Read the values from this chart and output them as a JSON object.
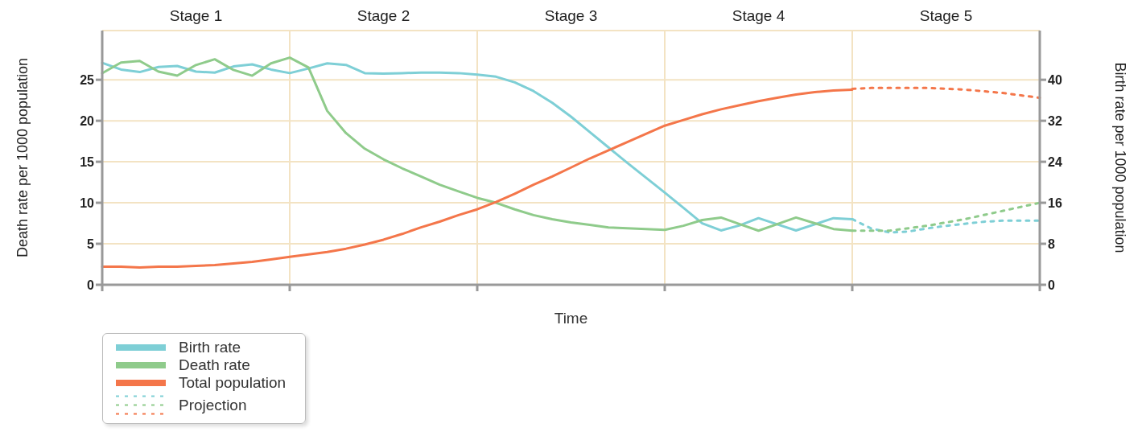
{
  "chart_data": {
    "type": "line",
    "xlabel": "Time",
    "ylabel": "Death rate per 1000 population",
    "y2label": "Birth rate per 1000 population",
    "categories": [
      null,
      null,
      null,
      null,
      null,
      null,
      null,
      null,
      null,
      null,
      null,
      null,
      null,
      null,
      null,
      null,
      null,
      null,
      null,
      null,
      null,
      null,
      null,
      null,
      null,
      null,
      null,
      null,
      null,
      null,
      null,
      null,
      null,
      null,
      null,
      null,
      null,
      null,
      null,
      null,
      null,
      null,
      null,
      null,
      null,
      null,
      null,
      null,
      null,
      null,
      null
    ],
    "ylim": [
      0,
      31
    ],
    "yticks": [
      0,
      5,
      10,
      15,
      20,
      25
    ],
    "y2lim": [
      0,
      49.6
    ],
    "y2ticks": [
      0,
      8,
      16,
      24,
      32,
      40
    ],
    "grid": true,
    "legend": "bottom left",
    "annotations": [
      "Stage 1",
      "Stage 2",
      "Stage 3",
      "Stage 4",
      "Stage 5"
    ],
    "series": [
      {
        "name": "Birth rate",
        "color": "#7ecfd6",
        "axis": "y2",
        "values": [
          43.3,
          42.0,
          41.5,
          42.5,
          42.7,
          41.6,
          41.4,
          42.6,
          43.0,
          42.0,
          41.3,
          42.2,
          43.2,
          42.9,
          41.3,
          41.2,
          41.3,
          41.4,
          41.4,
          41.3,
          41.0,
          40.6,
          39.5,
          37.8,
          35.5,
          32.8,
          29.8,
          26.8,
          23.8,
          20.9,
          18.0,
          15.0,
          12.0,
          10.6,
          11.6,
          13.0,
          11.8,
          10.6,
          11.8,
          13.0,
          12.8,
          null,
          null,
          null,
          null,
          null,
          null,
          null,
          null,
          null,
          null
        ]
      },
      {
        "name": "Death rate",
        "color": "#8fcb8b",
        "values": [
          25.8,
          27.1,
          27.3,
          26.0,
          25.5,
          26.8,
          27.5,
          26.2,
          25.5,
          27.0,
          27.7,
          26.5,
          21.2,
          18.5,
          16.6,
          15.3,
          14.2,
          13.2,
          12.2,
          11.4,
          10.6,
          10.0,
          9.2,
          8.5,
          8.0,
          7.6,
          7.3,
          7.0,
          6.9,
          6.8,
          6.7,
          7.2,
          7.9,
          8.2,
          7.4,
          6.6,
          7.4,
          8.2,
          7.5,
          6.8,
          6.6,
          null,
          null,
          null,
          null,
          null,
          null,
          null,
          null,
          null,
          null
        ]
      },
      {
        "name": "Total population",
        "color": "#f4764a",
        "values": [
          2.2,
          2.2,
          2.1,
          2.2,
          2.2,
          2.3,
          2.4,
          2.6,
          2.8,
          3.1,
          3.4,
          3.7,
          4.0,
          4.4,
          4.9,
          5.5,
          6.2,
          7.0,
          7.7,
          8.5,
          9.2,
          10.1,
          11.1,
          12.2,
          13.2,
          14.3,
          15.4,
          16.4,
          17.4,
          18.4,
          19.4,
          20.1,
          20.8,
          21.4,
          21.9,
          22.4,
          22.8,
          23.2,
          23.5,
          23.7,
          23.8,
          null,
          null,
          null,
          null,
          null,
          null,
          null,
          null,
          null,
          null
        ]
      },
      {
        "name": "Projection",
        "color": "#7ecfd6",
        "axis": "y2",
        "line_style": "dashed",
        "values": [
          null,
          null,
          null,
          null,
          null,
          null,
          null,
          null,
          null,
          null,
          null,
          null,
          null,
          null,
          null,
          null,
          null,
          null,
          null,
          null,
          null,
          null,
          null,
          null,
          null,
          null,
          null,
          null,
          null,
          null,
          null,
          null,
          null,
          null,
          null,
          null,
          null,
          null,
          null,
          null,
          12.8,
          11.0,
          10.2,
          10.4,
          11.0,
          11.5,
          11.9,
          12.3,
          12.5,
          12.5,
          12.5
        ]
      },
      {
        "color": "#8fcb8b",
        "line_style": "dashed",
        "values": [
          null,
          null,
          null,
          null,
          null,
          null,
          null,
          null,
          null,
          null,
          null,
          null,
          null,
          null,
          null,
          null,
          null,
          null,
          null,
          null,
          null,
          null,
          null,
          null,
          null,
          null,
          null,
          null,
          null,
          null,
          null,
          null,
          null,
          null,
          null,
          null,
          null,
          null,
          null,
          null,
          6.6,
          6.6,
          6.6,
          6.9,
          7.2,
          7.6,
          8.0,
          8.5,
          9.0,
          9.5,
          10.0
        ]
      },
      {
        "color": "#f4764a",
        "line_style": "dashed",
        "values": [
          null,
          null,
          null,
          null,
          null,
          null,
          null,
          null,
          null,
          null,
          null,
          null,
          null,
          null,
          null,
          null,
          null,
          null,
          null,
          null,
          null,
          null,
          null,
          null,
          null,
          null,
          null,
          null,
          null,
          null,
          null,
          null,
          null,
          null,
          null,
          null,
          null,
          null,
          null,
          null,
          23.9,
          24.0,
          24.0,
          24.0,
          24.0,
          23.9,
          23.8,
          23.6,
          23.4,
          23.1,
          22.8
        ]
      }
    ]
  }
}
